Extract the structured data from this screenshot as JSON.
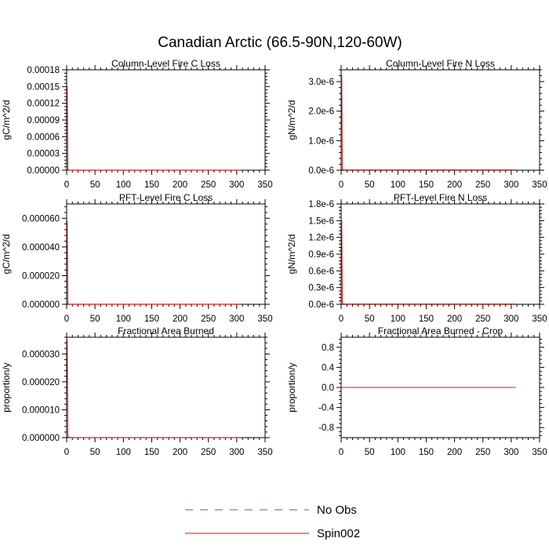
{
  "title": "Canadian Arctic (66.5-90N,120-60W)",
  "legend": {
    "items": [
      {
        "label": "No Obs",
        "color": "#5b5b9a",
        "style": "dashed"
      },
      {
        "label": "Spin002",
        "color": "#ff0000",
        "style": "solid"
      }
    ]
  },
  "chart_data": [
    {
      "type": "line",
      "title": "Column-Level Fire C Loss",
      "ylabel": "gC/m^2/d",
      "xlim": [
        0,
        350
      ],
      "ylim": [
        0,
        0.00018
      ],
      "xticks": [
        "0",
        "50",
        "100",
        "150",
        "200",
        "250",
        "300",
        "350"
      ],
      "xtick_values": [
        0,
        50,
        100,
        150,
        200,
        250,
        300,
        350
      ],
      "yticks": [
        "0.00000",
        "0.00003",
        "0.00006",
        "0.00009",
        "0.00012",
        "0.00015",
        "0.00018"
      ],
      "ytick_values": [
        0,
        3e-05,
        6e-05,
        9e-05,
        0.00012,
        0.00015,
        0.00018
      ],
      "series": [
        {
          "name": "Spin002",
          "color": "#ff0000",
          "x": [
            0,
            1,
            2,
            3,
            5,
            10,
            50,
            100,
            150,
            200,
            250,
            300,
            308
          ],
          "y": [
            0.00015,
            0.00015,
            2e-06,
            5e-07,
            2e-07,
            1e-07,
            1e-07,
            1e-07,
            1e-07,
            1e-07,
            1e-07,
            1e-07,
            1e-07
          ]
        }
      ]
    },
    {
      "type": "line",
      "title": "Column-Level Fire N Loss",
      "ylabel": "gN/m^2/d",
      "xlim": [
        0,
        350
      ],
      "ylim": [
        0,
        3.4e-06
      ],
      "xticks": [
        "0",
        "50",
        "100",
        "150",
        "200",
        "250",
        "300",
        "350"
      ],
      "xtick_values": [
        0,
        50,
        100,
        150,
        200,
        250,
        300,
        350
      ],
      "yticks": [
        "0.0e-6",
        "1.0e-6",
        "2.0e-6",
        "3.0e-6"
      ],
      "ytick_values": [
        0,
        1e-06,
        2e-06,
        3e-06
      ],
      "series": [
        {
          "name": "Spin002",
          "color": "#ff0000",
          "x": [
            0,
            1,
            2,
            3,
            5,
            10,
            50,
            100,
            150,
            200,
            250,
            300,
            308
          ],
          "y": [
            3.2e-06,
            3.2e-06,
            5e-08,
            2e-08,
            1e-08,
            1e-08,
            1e-08,
            1e-08,
            1e-08,
            1e-08,
            1e-08,
            1e-08,
            1e-08
          ]
        }
      ]
    },
    {
      "type": "line",
      "title": "PFT-Level Fire C Loss",
      "ylabel": "gC/m^2/d",
      "xlim": [
        0,
        350
      ],
      "ylim": [
        0,
        7e-05
      ],
      "xticks": [
        "0",
        "50",
        "100",
        "150",
        "200",
        "250",
        "300",
        "350"
      ],
      "xtick_values": [
        0,
        50,
        100,
        150,
        200,
        250,
        300,
        350
      ],
      "yticks": [
        "0.000000",
        "0.000020",
        "0.000040",
        "0.000060"
      ],
      "ytick_values": [
        0,
        2e-05,
        4e-05,
        6e-05
      ],
      "series": [
        {
          "name": "Spin002",
          "color": "#ff0000",
          "x": [
            0,
            1,
            2,
            3,
            5,
            10,
            50,
            100,
            150,
            200,
            250,
            300,
            308
          ],
          "y": [
            5.8e-05,
            5.8e-05,
            8e-07,
            3e-07,
            1e-07,
            5e-08,
            5e-08,
            5e-08,
            5e-08,
            5e-08,
            5e-08,
            5e-08,
            5e-08
          ]
        }
      ]
    },
    {
      "type": "line",
      "title": "PFT-Level Fire N Loss",
      "ylabel": "gN/m^2/d",
      "xlim": [
        0,
        350
      ],
      "ylim": [
        0,
        1.8e-06
      ],
      "xticks": [
        "0",
        "50",
        "100",
        "150",
        "200",
        "250",
        "300",
        "350"
      ],
      "xtick_values": [
        0,
        50,
        100,
        150,
        200,
        250,
        300,
        350
      ],
      "yticks": [
        "0.0e-6",
        "0.3e-6",
        "0.6e-6",
        "0.9e-6",
        "1.2e-6",
        "1.5e-6",
        "1.8e-6"
      ],
      "ytick_values": [
        0,
        3e-07,
        6e-07,
        9e-07,
        1.2e-06,
        1.5e-06,
        1.8e-06
      ],
      "series": [
        {
          "name": "Spin002",
          "color": "#ff0000",
          "x": [
            0,
            1,
            2,
            3,
            5,
            10,
            50,
            100,
            150,
            200,
            250,
            300,
            308
          ],
          "y": [
            1.5e-06,
            1.5e-06,
            3e-08,
            1e-08,
            5e-09,
            5e-09,
            5e-09,
            5e-09,
            5e-09,
            5e-09,
            5e-09,
            5e-09,
            5e-09
          ]
        }
      ]
    },
    {
      "type": "line",
      "title": "Fractional Area Burned",
      "ylabel": "proportion/y",
      "xlim": [
        0,
        350
      ],
      "ylim": [
        0,
        3.6e-05
      ],
      "xticks": [
        "0",
        "50",
        "100",
        "150",
        "200",
        "250",
        "300",
        "350"
      ],
      "xtick_values": [
        0,
        50,
        100,
        150,
        200,
        250,
        300,
        350
      ],
      "yticks": [
        "0.000000",
        "0.000010",
        "0.000020",
        "0.000030"
      ],
      "ytick_values": [
        0,
        1e-05,
        2e-05,
        3e-05
      ],
      "series": [
        {
          "name": "Spin002",
          "color": "#ff0000",
          "x": [
            0,
            1,
            2,
            3,
            5,
            10,
            50,
            100,
            150,
            200,
            250,
            300,
            308
          ],
          "y": [
            3.5e-05,
            3.5e-05,
            5e-07,
            2e-07,
            1e-07,
            5e-08,
            5e-08,
            5e-08,
            5e-08,
            5e-08,
            5e-08,
            5e-08,
            5e-08
          ]
        }
      ]
    },
    {
      "type": "line",
      "title": "Fractional Area Burned - Crop",
      "ylabel": "proportion/y",
      "xlim": [
        0,
        350
      ],
      "ylim": [
        -1,
        1
      ],
      "xticks": [
        "0",
        "50",
        "100",
        "150",
        "200",
        "250",
        "300",
        "350"
      ],
      "xtick_values": [
        0,
        50,
        100,
        150,
        200,
        250,
        300,
        350
      ],
      "yticks": [
        "-0.8",
        "-0.4",
        "0.0",
        "0.4",
        "0.8"
      ],
      "ytick_values": [
        -0.8,
        -0.4,
        0,
        0.4,
        0.8
      ],
      "series": [
        {
          "name": "Spin002",
          "color": "#ff0000",
          "x": [
            0,
            308
          ],
          "y": [
            0,
            0
          ]
        }
      ]
    }
  ]
}
